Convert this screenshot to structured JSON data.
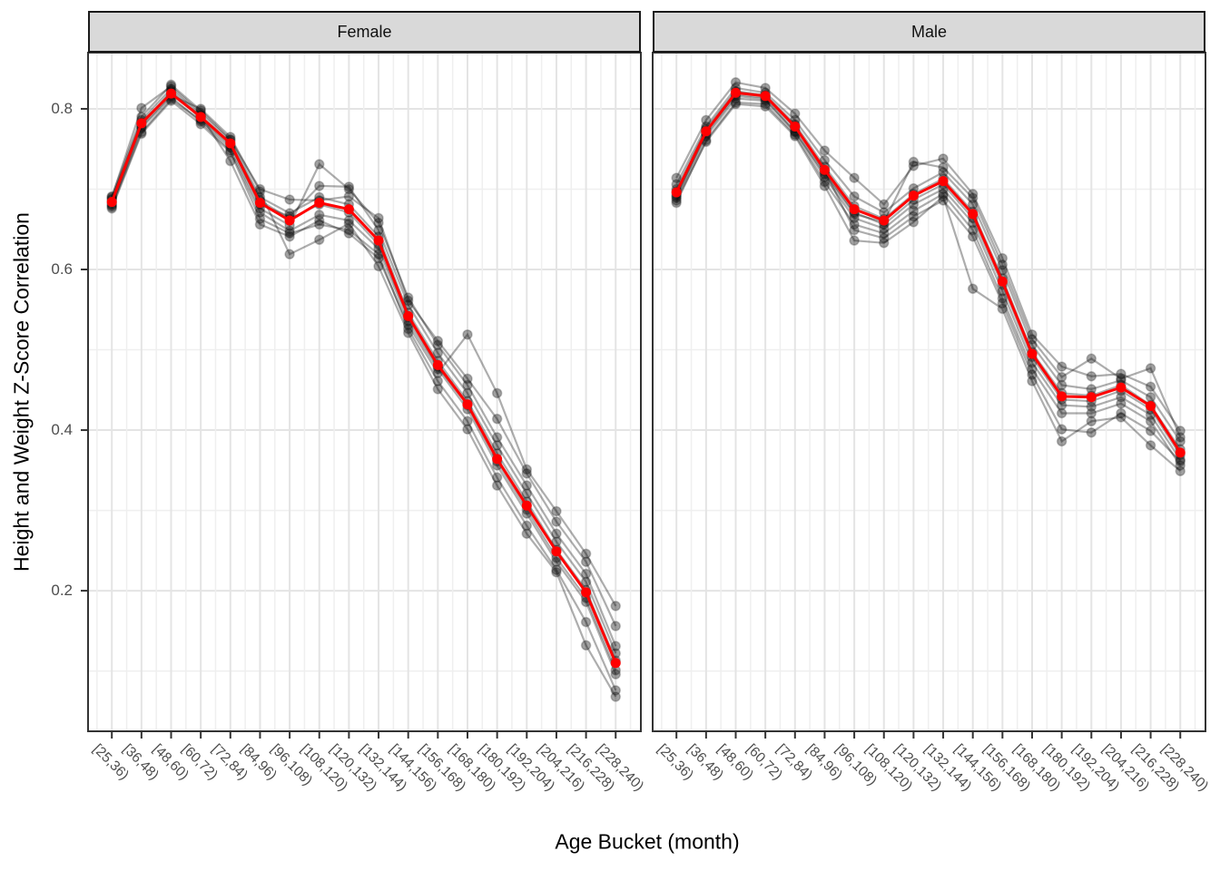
{
  "chart_data": {
    "type": "line",
    "title": "",
    "xlabel": "Age Bucket (month)",
    "ylabel": "Height and Weight Z-Score Correlation",
    "ylim": [
      0.025,
      0.87
    ],
    "y_breaks": [
      0.2,
      0.4,
      0.6,
      0.8
    ],
    "y_minor_breaks": [
      0.1,
      0.3,
      0.5,
      0.7
    ],
    "y_tick_labels": [
      "0.2",
      "0.4",
      "0.6",
      "0.8"
    ],
    "grid": true,
    "legend_position": "none",
    "categories": [
      "[25,36)",
      "[36,48)",
      "[48,60)",
      "[60,72)",
      "[72,84)",
      "[84,96)",
      "[96,108)",
      "[108,120)",
      "[120,132)",
      "[132,144)",
      "[144,156)",
      "[156,168)",
      "[168,180)",
      "[180,192)",
      "[192,204)",
      "[204,216)",
      "[216,228)",
      "[228,240)"
    ],
    "facets": [
      {
        "label": "Female",
        "mean_series": {
          "name": "mean",
          "values": [
            0.684,
            0.782,
            0.819,
            0.79,
            0.757,
            0.683,
            0.661,
            0.683,
            0.675,
            0.636,
            0.542,
            0.481,
            0.432,
            0.364,
            0.306,
            0.249,
            0.198,
            0.11
          ]
        },
        "individual_series": [
          [
            0.69,
            0.801,
            0.828,
            0.795,
            0.761,
            0.69,
            0.67,
            0.69,
            0.681,
            0.641,
            0.546,
            0.486,
            0.436,
            0.371,
            0.311,
            0.251,
            0.201,
            0.113
          ],
          [
            0.678,
            0.771,
            0.812,
            0.786,
            0.752,
            0.676,
            0.655,
            0.731,
            0.7,
            0.658,
            0.565,
            0.506,
            0.456,
            0.391,
            0.331,
            0.271,
            0.221,
            0.131
          ],
          [
            0.681,
            0.778,
            0.817,
            0.8,
            0.765,
            0.697,
            0.619,
            0.637,
            0.657,
            0.604,
            0.521,
            0.451,
            0.401,
            0.331,
            0.271,
            0.223,
            0.132,
            0.068
          ],
          [
            0.688,
            0.786,
            0.825,
            0.792,
            0.735,
            0.656,
            0.641,
            0.661,
            0.645,
            0.614,
            0.531,
            0.471,
            0.519,
            0.446,
            0.351,
            0.299,
            0.246,
            0.181
          ],
          [
            0.684,
            0.78,
            0.822,
            0.788,
            0.755,
            0.681,
            0.666,
            0.704,
            0.703,
            0.649,
            0.556,
            0.496,
            0.446,
            0.381,
            0.321,
            0.261,
            0.211,
            0.122
          ],
          [
            0.68,
            0.776,
            0.815,
            0.784,
            0.748,
            0.671,
            0.648,
            0.668,
            0.661,
            0.626,
            0.536,
            0.476,
            0.426,
            0.356,
            0.296,
            0.236,
            0.186,
            0.096
          ],
          [
            0.687,
            0.783,
            0.82,
            0.791,
            0.758,
            0.686,
            0.663,
            0.681,
            0.671,
            0.631,
            0.541,
            0.479,
            0.431,
            0.361,
            0.301,
            0.241,
            0.191,
            0.101
          ],
          [
            0.676,
            0.769,
            0.81,
            0.781,
            0.746,
            0.663,
            0.645,
            0.656,
            0.649,
            0.619,
            0.526,
            0.461,
            0.411,
            0.341,
            0.281,
            0.226,
            0.161,
            0.076
          ],
          [
            0.691,
            0.79,
            0.83,
            0.798,
            0.762,
            0.7,
            0.687,
            0.686,
            0.691,
            0.664,
            0.561,
            0.511,
            0.464,
            0.414,
            0.346,
            0.286,
            0.236,
            0.156
          ]
        ]
      },
      {
        "label": "Male",
        "mean_series": {
          "name": "mean",
          "values": [
            0.696,
            0.772,
            0.82,
            0.816,
            0.778,
            0.724,
            0.675,
            0.661,
            0.692,
            0.71,
            0.669,
            0.585,
            0.495,
            0.442,
            0.441,
            0.453,
            0.43,
            0.372
          ]
        },
        "individual_series": [
          [
            0.714,
            0.786,
            0.833,
            0.826,
            0.794,
            0.748,
            0.714,
            0.681,
            0.729,
            0.738,
            0.694,
            0.614,
            0.519,
            0.479,
            0.467,
            0.47,
            0.454,
            0.399
          ],
          [
            0.706,
            0.778,
            0.826,
            0.82,
            0.786,
            0.736,
            0.691,
            0.671,
            0.701,
            0.721,
            0.681,
            0.599,
            0.506,
            0.456,
            0.451,
            0.462,
            0.441,
            0.386
          ],
          [
            0.7,
            0.775,
            0.822,
            0.817,
            0.781,
            0.728,
            0.679,
            0.663,
            0.694,
            0.713,
            0.672,
            0.589,
            0.497,
            0.446,
            0.443,
            0.456,
            0.431,
            0.376
          ],
          [
            0.693,
            0.771,
            0.818,
            0.814,
            0.776,
            0.721,
            0.671,
            0.656,
            0.687,
            0.706,
            0.664,
            0.581,
            0.491,
            0.438,
            0.436,
            0.449,
            0.426,
            0.369
          ],
          [
            0.689,
            0.766,
            0.813,
            0.81,
            0.772,
            0.715,
            0.664,
            0.651,
            0.681,
            0.7,
            0.658,
            0.573,
            0.484,
            0.431,
            0.429,
            0.441,
            0.419,
            0.363
          ],
          [
            0.683,
            0.761,
            0.808,
            0.806,
            0.768,
            0.709,
            0.656,
            0.645,
            0.673,
            0.694,
            0.649,
            0.564,
            0.476,
            0.421,
            0.421,
            0.433,
            0.411,
            0.356
          ],
          [
            0.697,
            0.773,
            0.821,
            0.816,
            0.779,
            0.723,
            0.649,
            0.639,
            0.666,
            0.686,
            0.641,
            0.558,
            0.469,
            0.401,
            0.397,
            0.421,
            0.399,
            0.361
          ],
          [
            0.691,
            0.769,
            0.816,
            0.812,
            0.771,
            0.719,
            0.669,
            0.659,
            0.734,
            0.727,
            0.689,
            0.606,
            0.513,
            0.466,
            0.489,
            0.464,
            0.477,
            0.391
          ],
          [
            0.686,
            0.759,
            0.806,
            0.803,
            0.766,
            0.704,
            0.636,
            0.633,
            0.659,
            0.691,
            0.576,
            0.551,
            0.461,
            0.386,
            0.411,
            0.416,
            0.381,
            0.349
          ]
        ]
      }
    ]
  },
  "colors": {
    "mean_line": "#ff0000",
    "individual_line": "rgba(0,0,0,0.32)",
    "individual_point_fill": "rgba(20,20,20,0.40)",
    "individual_point_stroke": "rgba(0,0,0,0.22)",
    "strip_background": "#d9d9d9",
    "strip_border": "#1a1a1a",
    "panel_border": "#333333",
    "grid_major": "#e4e4e4",
    "grid_minor": "#efefef",
    "tick_mark": "#333333",
    "tick_label": "#4d4d4d",
    "axis_title": "#000000"
  }
}
